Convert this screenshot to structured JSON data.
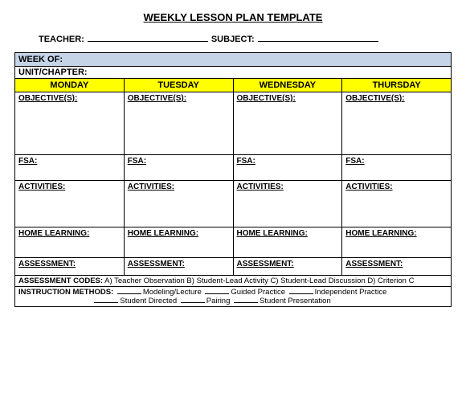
{
  "title": "WEEKLY LESSON PLAN TEMPLATE",
  "header": {
    "teacher_label": "TEACHER:",
    "subject_label": "SUBJECT:"
  },
  "rows": {
    "week_of": "WEEK OF:",
    "unit": "UNIT/CHAPTER:"
  },
  "days": [
    "MONDAY",
    "TUESDAY",
    "WEDNESDAY",
    "THURSDAY"
  ],
  "sections": {
    "objective": "OBJECTIVE(S):",
    "fsa": "FSA:  ",
    "activities": "ACTIVITIES:",
    "home": "HOME LEARNING:",
    "assessment": "ASSESSMENT:"
  },
  "footer": {
    "codes_label": "ASSESSMENT CODES:",
    "codes_text": "  A) Teacher Observation   B) Student-Lead Activity   C) Student-Lead Discussion   D) Criterion C",
    "methods_label": "INSTRUCTION METHODS:",
    "methods": [
      "Modeling/Lecture",
      "Guided Practice",
      "Independent Practice",
      "Student Directed",
      "Pairing",
      "Student Presentation"
    ]
  },
  "colors": {
    "week_bg": "#c5d4e6",
    "day_bg": "#ffff00",
    "border": "#000000"
  }
}
